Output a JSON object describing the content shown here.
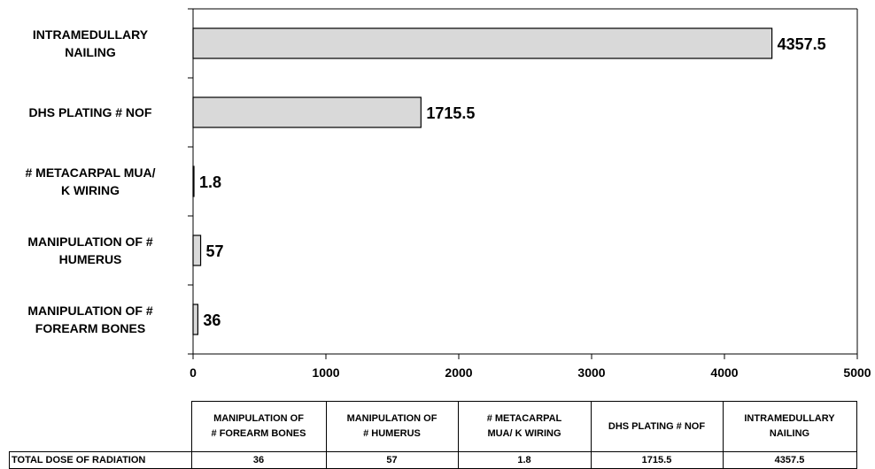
{
  "chart_data": {
    "type": "bar",
    "orientation": "horizontal",
    "categories": [
      "INTRAMEDULLARY\nNAILING",
      "DHS PLATING # NOF",
      "# METACARPAL MUA/\nK WIRING",
      "MANIPULATION OF #\nHUMERUS",
      "MANIPULATION OF #\nFOREARM BONES"
    ],
    "values": [
      4357.5,
      1715.5,
      1.8,
      57,
      36
    ],
    "value_labels": [
      "4357.5",
      "1715.5",
      "1.8",
      "57",
      "36"
    ],
    "xlim": [
      0,
      5000
    ],
    "x_ticks": [
      "0",
      "1000",
      "2000",
      "3000",
      "4000",
      "5000"
    ],
    "bar_color": "#d9d9d9",
    "grid": false,
    "legend": "none"
  },
  "table": {
    "columns": [
      "MANIPULATION OF\n# FOREARM BONES",
      "MANIPULATION OF\n# HUMERUS",
      "# METACARPAL\nMUA/ K WIRING",
      "DHS PLATING # NOF",
      "INTRAMEDULLARY\nNAILING"
    ],
    "row_label": "TOTAL DOSE OF RADIATION",
    "row_values": [
      "36",
      "57",
      "1.8",
      "1715.5",
      "4357.5"
    ]
  }
}
